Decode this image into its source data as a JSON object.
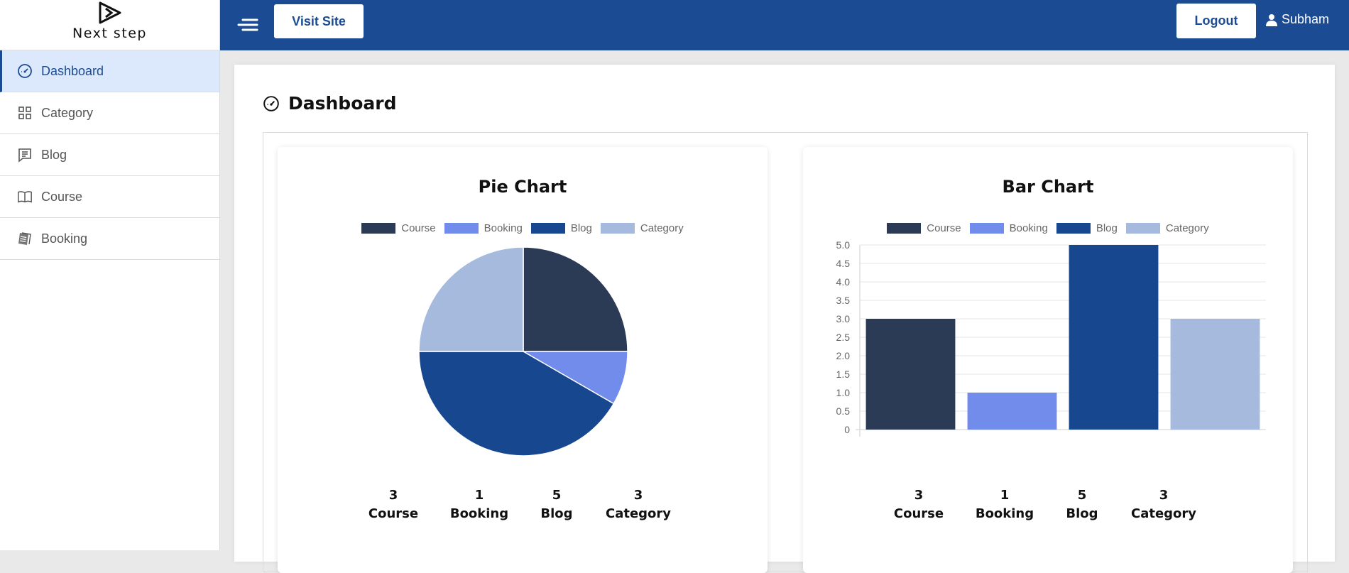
{
  "brand": {
    "name": "Next step"
  },
  "sidebar": {
    "items": [
      {
        "label": "Dashboard",
        "icon": "gauge-icon",
        "active": true
      },
      {
        "label": "Category",
        "icon": "grid-icon"
      },
      {
        "label": "Blog",
        "icon": "message-list-icon"
      },
      {
        "label": "Course",
        "icon": "book-icon"
      },
      {
        "label": "Booking",
        "icon": "notebook-icon"
      }
    ]
  },
  "topbar": {
    "visit_label": "Visit Site",
    "logout_label": "Logout",
    "user_name": "Subham"
  },
  "page": {
    "title": "Dashboard"
  },
  "colors": {
    "primary": "#1a4b93",
    "course": "#2b3a55",
    "booking": "#728ceb",
    "blog": "#17488f",
    "category": "#a5badd"
  },
  "chart_data": [
    {
      "type": "pie",
      "title": "Pie Chart",
      "categories": [
        "Course",
        "Booking",
        "Blog",
        "Category"
      ],
      "values": [
        3,
        1,
        5,
        3
      ],
      "colors": [
        "#2b3a55",
        "#728ceb",
        "#17488f",
        "#a5badd"
      ],
      "legend": "top"
    },
    {
      "type": "bar",
      "title": "Bar Chart",
      "categories": [
        "Course",
        "Booking",
        "Blog",
        "Category"
      ],
      "values": [
        3,
        1,
        5,
        3
      ],
      "colors": [
        "#2b3a55",
        "#728ceb",
        "#17488f",
        "#a5badd"
      ],
      "ylim": [
        0,
        5
      ],
      "yticks": [
        "0",
        "0.5",
        "1.0",
        "1.5",
        "2.0",
        "2.5",
        "3.0",
        "3.5",
        "4.0",
        "4.5",
        "5.0"
      ],
      "legend": "top",
      "grid": true
    }
  ],
  "summary": [
    {
      "value": "3",
      "label": "Course"
    },
    {
      "value": "1",
      "label": "Booking"
    },
    {
      "value": "5",
      "label": "Blog"
    },
    {
      "value": "3",
      "label": "Category"
    }
  ]
}
